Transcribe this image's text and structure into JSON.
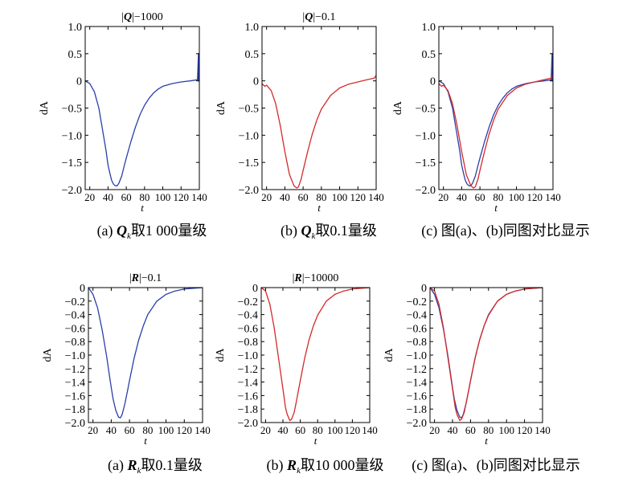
{
  "chart_data": [
    {
      "type": "line",
      "title_symbol": "Q",
      "title_suffix": "|−1000",
      "xlabel": "t",
      "ylabel": "dA",
      "xlim": [
        15,
        140
      ],
      "ylim": [
        -2.0,
        1.0
      ],
      "xticks": [
        20,
        40,
        60,
        80,
        100,
        120,
        140
      ],
      "yticks": [
        1.0,
        0.5,
        0,
        -0.5,
        -1.0,
        -1.5,
        -2.0
      ],
      "ytick_labels": [
        "1.0",
        "0.5",
        "0",
        "−0.5",
        "−1.0",
        "−1.5",
        "−2.0"
      ],
      "caption_prefix": "(a) ",
      "caption_symbol": "Q",
      "caption_sub": "k",
      "caption_rest": "取1 000量级",
      "series": [
        {
          "name": "Qk 1000",
          "color": "#2b3ea8",
          "x": [
            15,
            20,
            25,
            30,
            35,
            38,
            40,
            42,
            44,
            46,
            48,
            50,
            52,
            55,
            58,
            60,
            65,
            70,
            75,
            80,
            85,
            90,
            95,
            100,
            110,
            120,
            130,
            138,
            139,
            139,
            140
          ],
          "y": [
            0,
            -0.05,
            -0.2,
            -0.5,
            -1.0,
            -1.3,
            -1.55,
            -1.7,
            -1.83,
            -1.9,
            -1.93,
            -1.93,
            -1.88,
            -1.75,
            -1.55,
            -1.42,
            -1.12,
            -0.85,
            -0.62,
            -0.45,
            -0.32,
            -0.22,
            -0.15,
            -0.1,
            -0.05,
            -0.02,
            0,
            0.02,
            0.5,
            0,
            0.02
          ]
        }
      ]
    },
    {
      "type": "line",
      "title_symbol": "Q",
      "title_suffix": "|−0.1",
      "xlabel": "t",
      "ylabel": "dA",
      "xlim": [
        15,
        140
      ],
      "ylim": [
        -2.0,
        1.0
      ],
      "xticks": [
        20,
        40,
        60,
        80,
        100,
        120,
        140
      ],
      "yticks": [
        1.0,
        0.5,
        0,
        -0.5,
        -1.0,
        -1.5,
        -2.0
      ],
      "ytick_labels": [
        "1.0",
        "0.5",
        "0",
        "−0.5",
        "−1.0",
        "−1.5",
        "−2.0"
      ],
      "caption_prefix": "(b) ",
      "caption_symbol": "Q",
      "caption_sub": "k",
      "caption_rest": "取0.1量级",
      "series": [
        {
          "name": "Qk 0.1",
          "color": "#d42a2a",
          "x": [
            15,
            18,
            20,
            25,
            30,
            35,
            40,
            45,
            50,
            53,
            55,
            58,
            60,
            65,
            70,
            75,
            80,
            90,
            100,
            110,
            120,
            130,
            138,
            140
          ],
          "y": [
            -0.05,
            -0.1,
            -0.08,
            -0.18,
            -0.42,
            -0.82,
            -1.3,
            -1.72,
            -1.93,
            -1.97,
            -1.95,
            -1.8,
            -1.65,
            -1.3,
            -0.98,
            -0.72,
            -0.52,
            -0.27,
            -0.13,
            -0.06,
            -0.02,
            0.02,
            0.05,
            0.1
          ]
        }
      ]
    },
    {
      "type": "line",
      "title_symbol": "",
      "title_suffix": "",
      "xlabel": "t",
      "ylabel": "dA",
      "xlim": [
        15,
        140
      ],
      "ylim": [
        -2.0,
        1.0
      ],
      "xticks": [
        20,
        40,
        60,
        80,
        100,
        120,
        140
      ],
      "yticks": [
        1.0,
        0.5,
        0,
        -0.5,
        -1.0,
        -1.5,
        -2.0
      ],
      "ytick_labels": [
        "1.0",
        "0.5",
        "0",
        "−0.5",
        "−1.0",
        "−1.5",
        "−2.0"
      ],
      "caption_prefix": "(c) ",
      "caption_symbol": "",
      "caption_sub": "",
      "caption_rest": "图(a)、(b)同图对比显示",
      "series": [
        {
          "name": "Qk 1000",
          "color": "#2b3ea8",
          "x": [
            15,
            20,
            25,
            30,
            35,
            38,
            40,
            42,
            44,
            46,
            48,
            50,
            52,
            55,
            58,
            60,
            65,
            70,
            75,
            80,
            85,
            90,
            95,
            100,
            110,
            120,
            130,
            138,
            139,
            139,
            140
          ],
          "y": [
            0,
            -0.05,
            -0.2,
            -0.5,
            -1.0,
            -1.3,
            -1.55,
            -1.7,
            -1.83,
            -1.9,
            -1.93,
            -1.93,
            -1.88,
            -1.75,
            -1.55,
            -1.42,
            -1.12,
            -0.85,
            -0.62,
            -0.45,
            -0.32,
            -0.22,
            -0.15,
            -0.1,
            -0.05,
            -0.02,
            0,
            0.02,
            0.5,
            0,
            0.02
          ]
        },
        {
          "name": "Qk 0.1",
          "color": "#d42a2a",
          "x": [
            15,
            18,
            20,
            25,
            30,
            35,
            40,
            45,
            50,
            53,
            55,
            58,
            60,
            65,
            70,
            75,
            80,
            90,
            100,
            110,
            120,
            130,
            138,
            140
          ],
          "y": [
            -0.05,
            -0.1,
            -0.08,
            -0.18,
            -0.42,
            -0.82,
            -1.3,
            -1.72,
            -1.93,
            -1.97,
            -1.95,
            -1.8,
            -1.65,
            -1.3,
            -0.98,
            -0.72,
            -0.52,
            -0.27,
            -0.13,
            -0.06,
            -0.02,
            0.02,
            0.05,
            0.1
          ]
        }
      ]
    },
    {
      "type": "line",
      "title_symbol": "R",
      "title_suffix": "|−0.1",
      "xlabel": "t",
      "ylabel": "dA",
      "xlim": [
        15,
        140
      ],
      "ylim": [
        -2.0,
        0
      ],
      "xticks": [
        20,
        40,
        60,
        80,
        100,
        120,
        140
      ],
      "yticks": [
        0,
        -0.2,
        -0.4,
        -0.6,
        -0.8,
        -1.0,
        -1.2,
        -1.4,
        -1.6,
        -1.8,
        -2.0
      ],
      "ytick_labels": [
        "0",
        "−0.2",
        "−0.4",
        "−0.6",
        "−0.8",
        "−1.0",
        "−1.2",
        "−1.4",
        "−1.6",
        "−1.8",
        "−2.0"
      ],
      "caption_prefix": "(a) ",
      "caption_symbol": "R",
      "caption_sub": "k",
      "caption_rest": "取0.1量级",
      "series": [
        {
          "name": "Rk 0.1",
          "color": "#2b3ea8",
          "x": [
            15,
            20,
            25,
            30,
            35,
            38,
            40,
            42,
            45,
            48,
            50,
            52,
            55,
            58,
            60,
            65,
            70,
            75,
            80,
            90,
            100,
            110,
            120,
            130,
            140
          ],
          "y": [
            0,
            -0.1,
            -0.3,
            -0.62,
            -1.02,
            -1.3,
            -1.48,
            -1.65,
            -1.82,
            -1.92,
            -1.93,
            -1.88,
            -1.72,
            -1.52,
            -1.38,
            -1.05,
            -0.78,
            -0.57,
            -0.4,
            -0.2,
            -0.1,
            -0.05,
            -0.02,
            -0.01,
            0
          ]
        }
      ]
    },
    {
      "type": "line",
      "title_symbol": "R",
      "title_suffix": "|−10000",
      "xlabel": "t",
      "ylabel": "dA",
      "xlim": [
        15,
        140
      ],
      "ylim": [
        -2.0,
        0
      ],
      "xticks": [
        20,
        40,
        60,
        80,
        100,
        120,
        140
      ],
      "yticks": [
        0,
        -0.2,
        -0.4,
        -0.6,
        -0.8,
        -1.0,
        -1.2,
        -1.4,
        -1.6,
        -1.8,
        -2.0
      ],
      "ytick_labels": [
        "0",
        "−0.2",
        "−0.4",
        "−0.6",
        "−0.8",
        "−1.0",
        "−1.2",
        "−1.4",
        "−1.6",
        "−1.8",
        "−2.0"
      ],
      "caption_prefix": "(b) ",
      "caption_symbol": "R",
      "caption_sub": "k",
      "caption_rest": "取10 000量级",
      "series": [
        {
          "name": "Rk 10000",
          "color": "#d42a2a",
          "x": [
            15,
            20,
            25,
            30,
            35,
            40,
            43,
            45,
            48,
            50,
            53,
            55,
            60,
            65,
            70,
            75,
            80,
            90,
            100,
            110,
            120,
            130,
            140
          ],
          "y": [
            0,
            -0.05,
            -0.25,
            -0.6,
            -1.05,
            -1.5,
            -1.78,
            -1.88,
            -1.97,
            -1.95,
            -1.85,
            -1.72,
            -1.38,
            -1.05,
            -0.78,
            -0.57,
            -0.41,
            -0.2,
            -0.1,
            -0.05,
            -0.02,
            -0.01,
            0
          ]
        }
      ]
    },
    {
      "type": "line",
      "title_symbol": "",
      "title_suffix": "",
      "xlabel": "t",
      "ylabel": "dA",
      "xlim": [
        15,
        140
      ],
      "ylim": [
        -2.0,
        0
      ],
      "xticks": [
        20,
        40,
        60,
        80,
        100,
        120,
        140
      ],
      "yticks": [
        0,
        -0.2,
        -0.4,
        -0.6,
        -0.8,
        -1.0,
        -1.2,
        -1.4,
        -1.6,
        -1.8,
        -2.0
      ],
      "ytick_labels": [
        "0",
        "−0.2",
        "−0.4",
        "−0.6",
        "−0.8",
        "−1.0",
        "−1.2",
        "−1.4",
        "−1.6",
        "−1.8",
        "−2.0"
      ],
      "caption_prefix": "(c) ",
      "caption_symbol": "",
      "caption_sub": "",
      "caption_rest": "图(a)、(b)同图对比显示",
      "series": [
        {
          "name": "Rk 0.1",
          "color": "#2b3ea8",
          "x": [
            15,
            20,
            25,
            30,
            35,
            38,
            40,
            42,
            45,
            48,
            50,
            52,
            55,
            58,
            60,
            65,
            70,
            75,
            80,
            90,
            100,
            110,
            120,
            130,
            140
          ],
          "y": [
            0,
            -0.1,
            -0.3,
            -0.62,
            -1.02,
            -1.3,
            -1.48,
            -1.65,
            -1.82,
            -1.92,
            -1.93,
            -1.88,
            -1.72,
            -1.52,
            -1.38,
            -1.05,
            -0.78,
            -0.57,
            -0.4,
            -0.2,
            -0.1,
            -0.05,
            -0.02,
            -0.01,
            0
          ]
        },
        {
          "name": "Rk 10000",
          "color": "#d42a2a",
          "x": [
            15,
            20,
            25,
            30,
            35,
            40,
            43,
            45,
            48,
            50,
            53,
            55,
            60,
            65,
            70,
            75,
            80,
            90,
            100,
            110,
            120,
            130,
            140
          ],
          "y": [
            0,
            -0.05,
            -0.25,
            -0.6,
            -1.05,
            -1.5,
            -1.78,
            -1.88,
            -1.97,
            -1.95,
            -1.85,
            -1.72,
            -1.38,
            -1.05,
            -0.78,
            -0.57,
            -0.41,
            -0.2,
            -0.1,
            -0.05,
            -0.02,
            -0.01,
            0
          ]
        }
      ]
    }
  ]
}
